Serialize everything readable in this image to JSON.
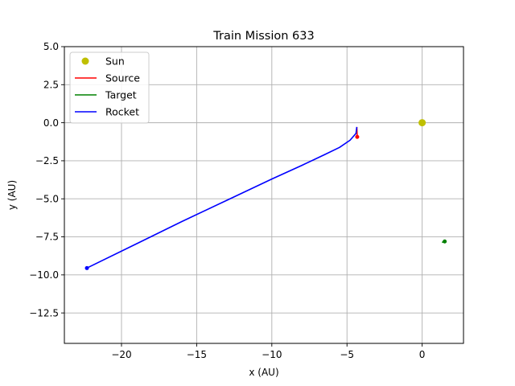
{
  "chart_data": {
    "type": "line",
    "title": "Train Mission 633",
    "xlabel": "x (AU)",
    "ylabel": "y (AU)",
    "xlim": [
      -23.8,
      2.75
    ],
    "ylim": [
      -14.5,
      5.0
    ],
    "xticks": [
      -20,
      -15,
      -10,
      -5,
      0
    ],
    "xtick_labels": [
      "−20",
      "−15",
      "−10",
      "−5",
      "0"
    ],
    "yticks": [
      5.0,
      2.5,
      0.0,
      -2.5,
      -5.0,
      -7.5,
      -10.0,
      -12.5
    ],
    "ytick_labels": [
      "5.0",
      "2.5",
      "0.0",
      "−2.5",
      "−5.0",
      "−7.5",
      "−10.0",
      "−12.5"
    ],
    "grid": true,
    "legend_position": "top-left",
    "legend": [
      "Sun",
      "Source",
      "Target",
      "Rocket"
    ],
    "sun": {
      "x": 0.0,
      "y": 0.0,
      "color": "#bfbf00"
    },
    "series": [
      {
        "name": "Source",
        "color": "#ff0000",
        "x": [
          -4.35,
          -4.33,
          -4.32
        ],
        "y": [
          -0.28,
          -0.6,
          -0.93
        ],
        "end_marker": true
      },
      {
        "name": "Target",
        "color": "#008000",
        "x": [
          1.32,
          1.42,
          1.5
        ],
        "y": [
          -7.87,
          -7.82,
          -7.8
        ],
        "end_marker": true
      },
      {
        "name": "Rocket",
        "color": "#0000ff",
        "x": [
          -4.35,
          -4.4,
          -4.8,
          -5.5,
          -6.5,
          -8.0,
          -10.0,
          -13.0,
          -16.0,
          -19.0,
          -22.3
        ],
        "y": [
          -0.28,
          -0.7,
          -1.15,
          -1.62,
          -2.1,
          -2.8,
          -3.7,
          -5.1,
          -6.5,
          -7.95,
          -9.55
        ],
        "end_marker": true
      }
    ]
  }
}
